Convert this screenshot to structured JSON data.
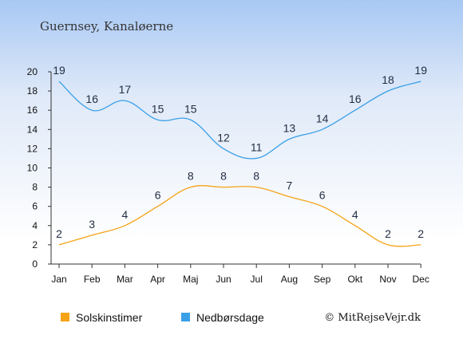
{
  "chart_data": {
    "type": "line",
    "title": "Guernsey, Kanaløerne",
    "categories": [
      "Jan",
      "Feb",
      "Mar",
      "Apr",
      "Maj",
      "Jun",
      "Jul",
      "Aug",
      "Sep",
      "Okt",
      "Nov",
      "Dec"
    ],
    "series": [
      {
        "name": "Solskinstimer",
        "values": [
          2,
          3,
          4,
          6,
          8,
          8,
          8,
          7,
          6,
          4,
          2,
          2
        ],
        "color": "#f5a316"
      },
      {
        "name": "Nedbørsdage",
        "values": [
          19,
          16,
          17,
          15,
          15,
          12,
          11,
          13,
          14,
          16,
          18,
          19
        ],
        "color": "#3aa0e8"
      }
    ],
    "ylim": [
      0,
      20
    ],
    "yticks": [
      0,
      2,
      4,
      6,
      8,
      10,
      12,
      14,
      16,
      18,
      20
    ],
    "grid": false,
    "legend": "bottom"
  },
  "copyright": "© MitRejseVejr.dk"
}
